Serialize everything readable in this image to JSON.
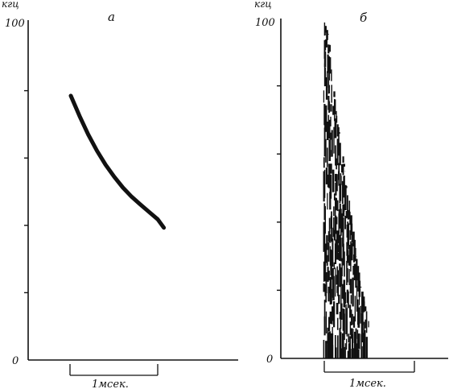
{
  "chart_data": [
    {
      "type": "line",
      "panel_label": "а",
      "y_unit": "кгц",
      "ylim": [
        0,
        100
      ],
      "y_tick_labels": [
        "100",
        "0"
      ],
      "y_minor_ticks": [
        20,
        40,
        60,
        80
      ],
      "x_unit": "мсек",
      "scale_bar_label": "1мсек.",
      "scale_bar_ms": 1,
      "series": [
        {
          "x": [
            0.0,
            0.05,
            0.1,
            0.2,
            0.3,
            0.4,
            0.5,
            0.6,
            0.7,
            0.8,
            0.9,
            1.0,
            1.07
          ],
          "y": [
            78.5,
            75.5,
            72.5,
            67.0,
            62.2,
            58.0,
            54.4,
            51.2,
            48.5,
            46.2,
            44.0,
            41.8,
            39.3
          ]
        }
      ]
    },
    {
      "type": "scatter",
      "panel_label": "б",
      "y_unit": "кгц",
      "ylim": [
        0,
        100
      ],
      "y_tick_labels": [
        "100",
        "0"
      ],
      "y_minor_ticks": [
        20,
        40,
        60,
        80
      ],
      "x_unit": "мсек",
      "scale_bar_label": "1мсек.",
      "scale_bar_ms": 1,
      "noise_envelope": {
        "x": [
          0.0,
          0.05,
          0.1,
          0.2,
          0.3,
          0.4,
          0.5
        ],
        "y_top": [
          100,
          95,
          80,
          60,
          42,
          22,
          10
        ],
        "y_bottom": [
          0,
          0,
          0,
          0,
          0,
          0,
          0
        ]
      }
    }
  ]
}
